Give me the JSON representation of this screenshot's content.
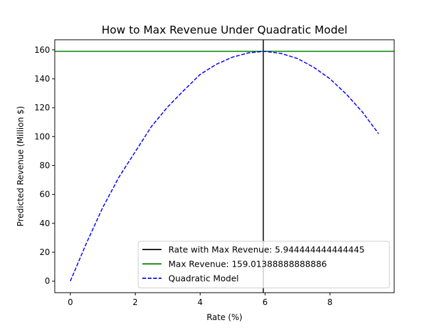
{
  "chart_data": {
    "type": "line",
    "title": "How to Max Revenue Under Quadratic Model",
    "xlabel": "Rate (%)",
    "ylabel": "Predicted Revenue (Million $)",
    "xlim": [
      -0.48,
      9.98
    ],
    "ylim": [
      -8,
      167
    ],
    "xticks": [
      0,
      2,
      4,
      6,
      8
    ],
    "yticks": [
      0,
      20,
      40,
      60,
      80,
      100,
      120,
      140,
      160
    ],
    "grid": false,
    "legend_position": "lower-right",
    "series": [
      {
        "name": "Quadratic Model",
        "style": "dashed",
        "color": "#0000ff",
        "x": [
          0,
          0.5,
          1.0,
          1.5,
          2.0,
          2.5,
          3.0,
          3.5,
          4.0,
          4.5,
          5.0,
          5.5,
          6.0,
          6.5,
          7.0,
          7.5,
          8.0,
          8.5,
          9.0,
          9.5
        ],
        "y": [
          0,
          26.5,
          51.0,
          72.0,
          89.5,
          107.0,
          120.5,
          132.0,
          143.0,
          150.0,
          155.0,
          158.0,
          159.0,
          157.5,
          154.0,
          148.0,
          140.0,
          129.5,
          117.0,
          102.0
        ]
      }
    ],
    "reference_lines": [
      {
        "name": "Rate with Max Revenue: 5.944444444444445",
        "orientation": "vertical",
        "value": 5.944444444444445,
        "color": "#000000"
      },
      {
        "name": "Max Revenue: 159.01388888888886",
        "orientation": "horizontal",
        "value": 159.01388888888886,
        "color": "#008000"
      }
    ],
    "legend": [
      {
        "label": "Rate with Max Revenue: 5.944444444444445",
        "color": "#000000",
        "style": "solid"
      },
      {
        "label": "Max Revenue: 159.01388888888886",
        "color": "#008000",
        "style": "solid"
      },
      {
        "label": "Quadratic Model",
        "color": "#0000ff",
        "style": "dashed"
      }
    ]
  }
}
